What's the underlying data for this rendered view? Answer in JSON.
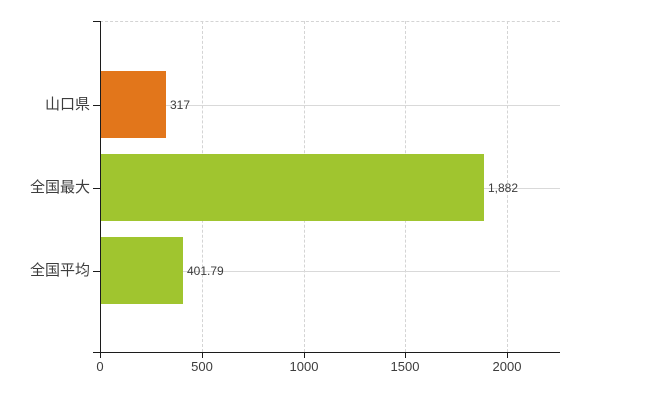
{
  "chart_data": {
    "type": "bar",
    "orientation": "horizontal",
    "title": "",
    "categories": [
      "山口県",
      "全国最大",
      "全国平均"
    ],
    "values": [
      317,
      1882,
      401.79
    ],
    "value_labels": [
      "317",
      "1,882",
      "401.79"
    ],
    "bar_colors": [
      "#e2761b",
      "#a0c52f",
      "#a0c52f"
    ],
    "x_ticks": [
      0,
      500,
      1000,
      1500,
      2000
    ],
    "x_tick_labels": [
      "0",
      "500",
      "1000",
      "1500",
      "2000"
    ],
    "xlim": [
      0,
      2260
    ],
    "ylabel": "",
    "xlabel": "",
    "legend": "none",
    "grid": {
      "vertical_gridlines": "dashed",
      "horizontal_gridlines": "solid",
      "top_border": "dashed",
      "right_border": "none"
    }
  },
  "colors": {
    "background": "#ffffff",
    "axis": "#1c1c1c",
    "grid_dashed": "#d4d4d4",
    "grid_solid": "#d9d9d9",
    "text": "#3d3d3d",
    "bar_orange": "#e2761b",
    "bar_green": "#a0c52f"
  }
}
